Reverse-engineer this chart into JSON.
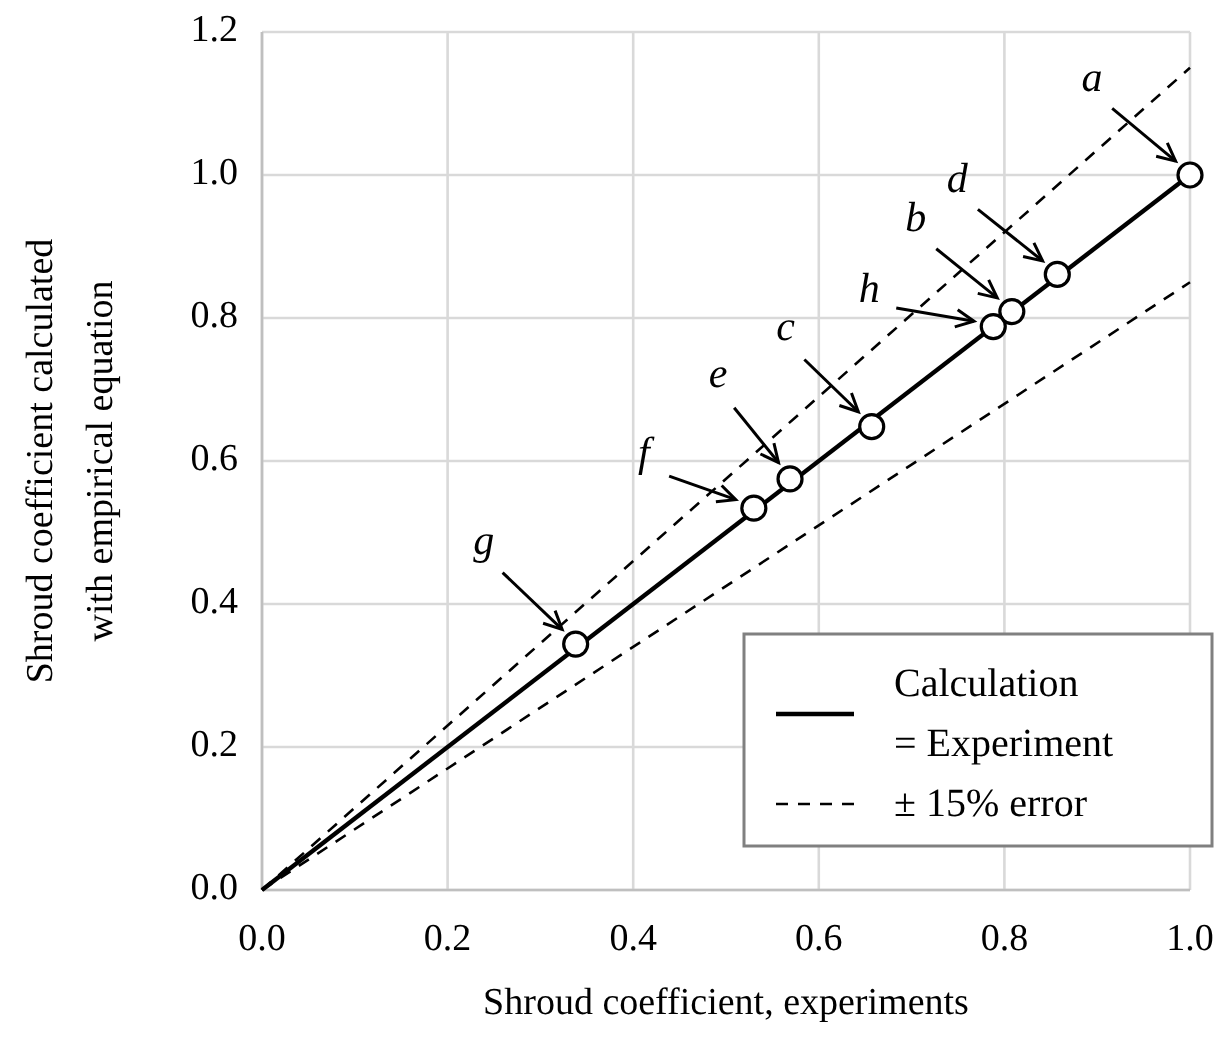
{
  "chart_data": {
    "type": "scatter",
    "xlabel": "Shroud coefficient, experiments",
    "ylabel": "Shroud coefficient calculated with empirical equation",
    "xlim": [
      0,
      1
    ],
    "ylim": [
      0,
      1.2
    ],
    "xticks": [
      {
        "value": 0,
        "label": "0.0"
      },
      0.2,
      0.4,
      0.6,
      0.8,
      {
        "value": 1,
        "label": "1.0"
      }
    ],
    "yticks": [
      {
        "value": 0,
        "label": "0.0"
      },
      0.2,
      0.4,
      0.6,
      0.8,
      {
        "value": 1,
        "label": "1.0"
      },
      1.2
    ],
    "grid": true,
    "legend": "bottom right",
    "series": [
      {
        "name": "Calculation = Experiment",
        "type": "line",
        "color": "#000000",
        "x": [
          0,
          1
        ],
        "values": [
          0,
          1
        ],
        "line_style": "solid",
        "marker": "none"
      },
      {
        "name": "± 15% error",
        "type": "line",
        "color": "#000000",
        "x": [
          0,
          1
        ],
        "values": [
          0,
          1.15
        ],
        "line_style": "dashed",
        "marker": "none"
      },
      {
        "type": "line",
        "color": "#000000",
        "x": [
          0,
          1
        ],
        "values": [
          0,
          0.85
        ],
        "line_style": "dashed",
        "marker": "none"
      },
      {
        "color": "#000000",
        "x": [
          1,
          0.808,
          0.657,
          0.857,
          0.569,
          0.53,
          0.338,
          0.788
        ],
        "values": [
          1,
          0.809,
          0.648,
          0.861,
          0.575,
          0.534,
          0.344,
          0.788
        ],
        "marker": "circle"
      }
    ],
    "annotations": [
      {
        "text": "a",
        "x": 1,
        "y": 1
      },
      {
        "text": "b",
        "x": 0.808,
        "y": 0.809
      },
      {
        "text": "c",
        "x": 0.657,
        "y": 0.648
      },
      {
        "text": "d",
        "x": 0.857,
        "y": 0.861
      },
      {
        "text": "e",
        "x": 0.569,
        "y": 0.575
      },
      {
        "text": "f",
        "x": 0.53,
        "y": 0.534
      },
      {
        "text": "g",
        "x": 0.338,
        "y": 0.344
      },
      {
        "text": "h",
        "x": 0.788,
        "y": 0.788
      }
    ]
  }
}
